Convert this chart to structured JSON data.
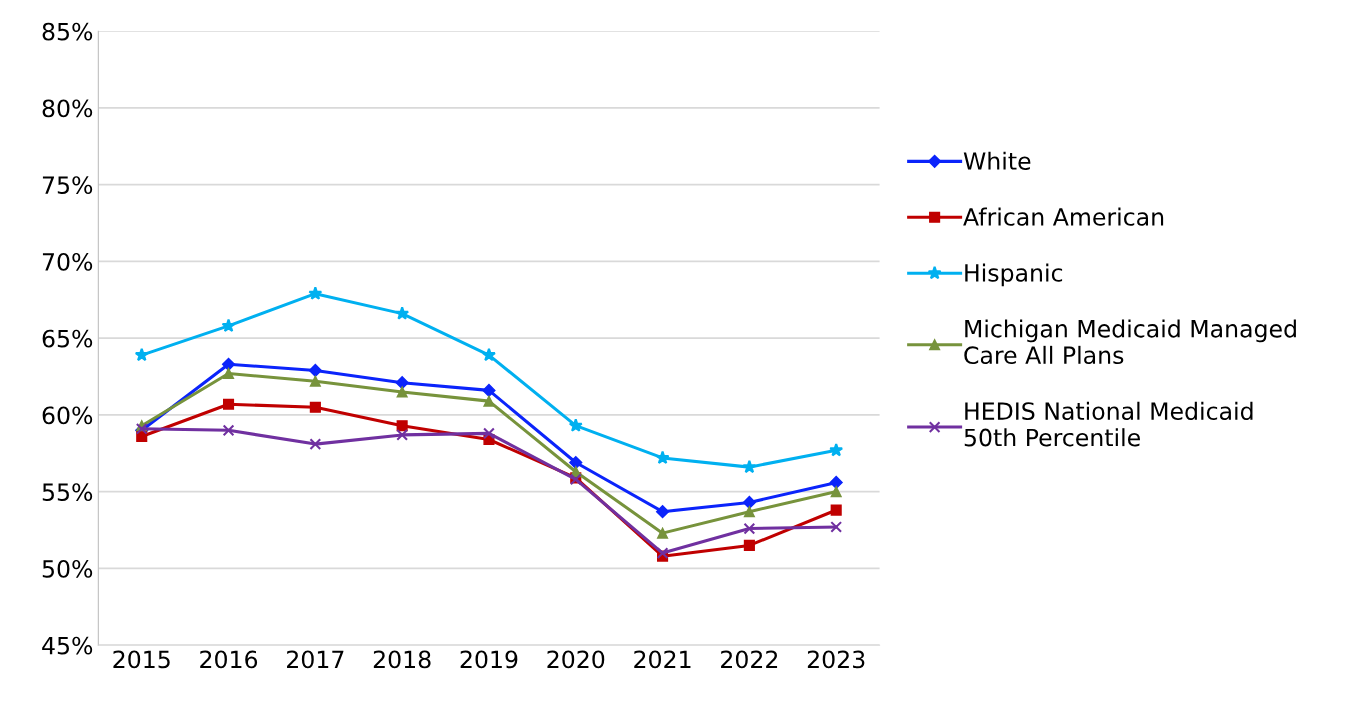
{
  "chart_data": {
    "type": "line",
    "categories": [
      "2015",
      "2016",
      "2017",
      "2018",
      "2019",
      "2020",
      "2021",
      "2022",
      "2023"
    ],
    "series": [
      {
        "name": "White",
        "color": "#0b24fb",
        "marker": "diamond",
        "values": [
          59.0,
          63.3,
          62.9,
          62.1,
          61.6,
          56.9,
          53.7,
          54.3,
          55.6
        ]
      },
      {
        "name": "African American",
        "color": "#c00000",
        "marker": "square",
        "values": [
          58.6,
          60.7,
          60.5,
          59.3,
          58.4,
          55.9,
          50.8,
          51.5,
          53.8
        ]
      },
      {
        "name": "Hispanic",
        "color": "#00b0f0",
        "marker": "star",
        "values": [
          63.9,
          65.8,
          67.9,
          66.6,
          63.9,
          59.3,
          57.2,
          56.6,
          57.7
        ]
      },
      {
        "name": "Michigan Medicaid Managed Care All Plans",
        "color": "#77933c",
        "marker": "triangle",
        "values": [
          59.3,
          62.7,
          62.2,
          61.5,
          60.9,
          56.3,
          52.3,
          53.7,
          55.0
        ]
      },
      {
        "name": "HEDIS National Medicaid 50th Percentile",
        "color": "#7030a0",
        "marker": "cross",
        "values": [
          59.1,
          59.0,
          58.1,
          58.7,
          58.8,
          55.8,
          51.0,
          52.6,
          52.7
        ]
      }
    ],
    "ylim": [
      45,
      85
    ],
    "yticks": [
      {
        "value": 45,
        "label": "45%"
      },
      {
        "value": 50,
        "label": "50%"
      },
      {
        "value": 55,
        "label": "55%"
      },
      {
        "value": 60,
        "label": "60%"
      },
      {
        "value": 65,
        "label": "65%"
      },
      {
        "value": 70,
        "label": "70%"
      },
      {
        "value": 75,
        "label": "75%"
      },
      {
        "value": 80,
        "label": "80%"
      },
      {
        "value": 85,
        "label": "85%"
      }
    ],
    "grid": "y",
    "legend": "right",
    "line_style": "solid"
  }
}
